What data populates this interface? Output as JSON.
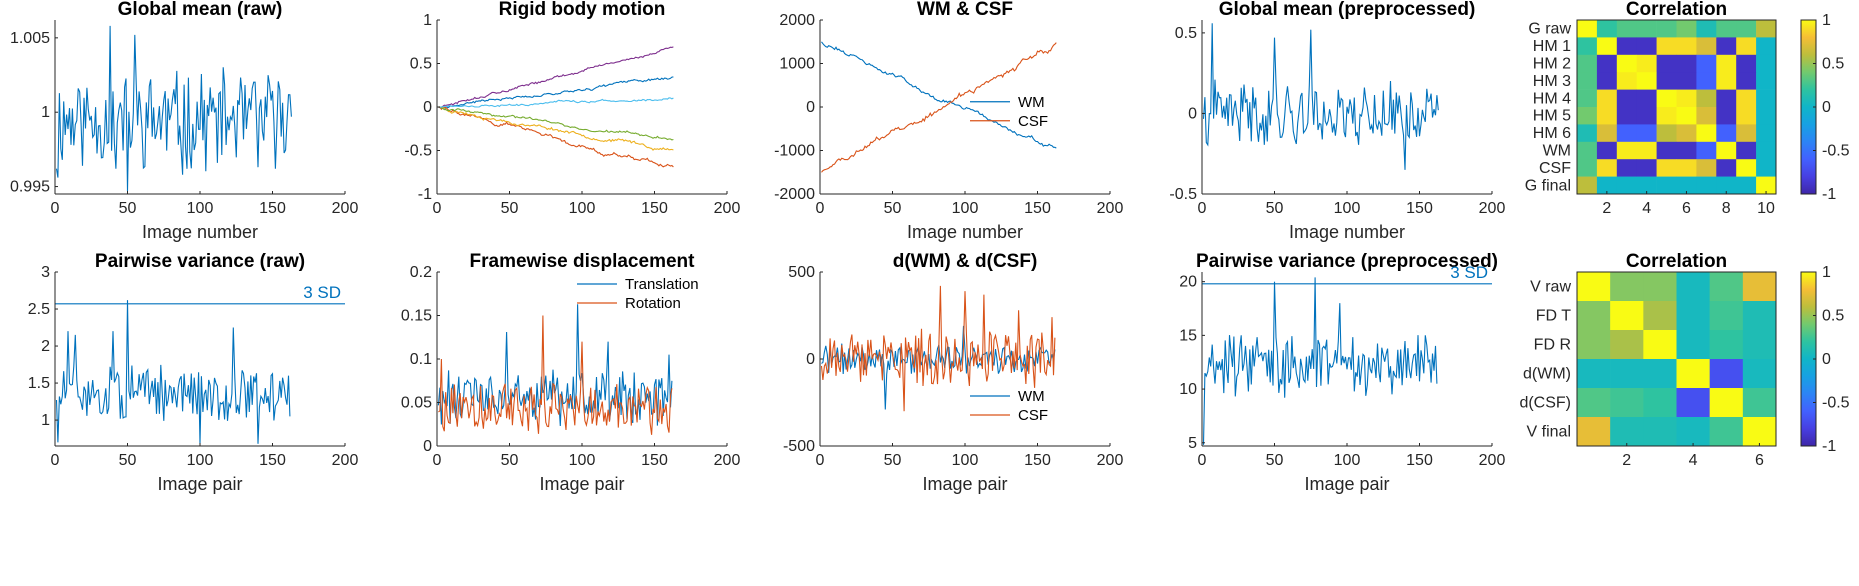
{
  "chart_data": [
    {
      "id": "gm_raw",
      "type": "line",
      "title": "Global mean (raw)",
      "xlabel": "Image number",
      "ylabel": "",
      "xlim": [
        0,
        200
      ],
      "ylim": [
        0.9945,
        1.0062
      ],
      "xticks": [
        0,
        50,
        100,
        150,
        200
      ],
      "yticks": [
        0.995,
        1,
        1.005
      ],
      "ytick_labels": [
        "0.995",
        "1",
        "1.005"
      ],
      "grid": false,
      "series": [
        {
          "name": "",
          "color": "#0072BD",
          "n": 163,
          "x_start": 1,
          "x_step": 1,
          "base": 0.9995,
          "amp": 0.0028,
          "trend": 0,
          "seed": 11,
          "spikes": [
            [
              1,
              0.9962
            ],
            [
              2,
              0.9956
            ],
            [
              38,
              1.0058
            ],
            [
              42,
              0.9962
            ],
            [
              50,
              0.9947
            ],
            [
              55,
              1.0052
            ],
            [
              88,
              0.9958
            ],
            [
              140,
              0.9963
            ],
            [
              163,
              0.9997
            ]
          ]
        }
      ]
    },
    {
      "id": "rigid",
      "type": "line",
      "title": "Rigid body motion",
      "xlabel": "",
      "ylabel": "",
      "xlim": [
        0,
        200
      ],
      "ylim": [
        -1,
        1
      ],
      "xticks": [
        0,
        50,
        100,
        150,
        200
      ],
      "yticks": [
        -1,
        -0.5,
        0,
        0.5,
        1
      ],
      "ytick_labels": [
        "-1",
        "-0.5",
        "0",
        "0.5",
        "1"
      ],
      "grid": false,
      "series": [
        {
          "name": "",
          "color": "#0072BD",
          "n": 163,
          "x_start": 1,
          "x_step": 1,
          "mode": "walk",
          "end": 0.35,
          "noise": 0.012,
          "seed": 21
        },
        {
          "name": "",
          "color": "#D95319",
          "n": 163,
          "x_start": 1,
          "x_step": 1,
          "mode": "walk",
          "end": -0.7,
          "noise": 0.018,
          "seed": 22
        },
        {
          "name": "",
          "color": "#EDB120",
          "n": 163,
          "x_start": 1,
          "x_step": 1,
          "mode": "walk",
          "end": -0.5,
          "noise": 0.015,
          "seed": 23
        },
        {
          "name": "",
          "color": "#7E2F8E",
          "n": 163,
          "x_start": 1,
          "x_step": 1,
          "mode": "walk",
          "end": 0.68,
          "noise": 0.012,
          "seed": 24
        },
        {
          "name": "",
          "color": "#77AC30",
          "n": 163,
          "x_start": 1,
          "x_step": 1,
          "mode": "walk",
          "end": -0.37,
          "noise": 0.012,
          "seed": 25
        },
        {
          "name": "",
          "color": "#4DBEEE",
          "n": 163,
          "x_start": 1,
          "x_step": 1,
          "mode": "walk",
          "end": 0.1,
          "noise": 0.01,
          "seed": 26
        }
      ]
    },
    {
      "id": "wmcsf",
      "type": "line",
      "title": "WM & CSF",
      "xlabel": "Image number",
      "ylabel": "",
      "xlim": [
        0,
        200
      ],
      "ylim": [
        -2000,
        2000
      ],
      "xticks": [
        0,
        50,
        100,
        150,
        200
      ],
      "yticks": [
        -2000,
        -1000,
        0,
        1000,
        2000
      ],
      "ytick_labels": [
        "-2000",
        "-1000",
        "0",
        "1000",
        "2000"
      ],
      "grid": false,
      "legend": "east",
      "series": [
        {
          "name": "WM",
          "color": "#0072BD",
          "n": 163,
          "x_start": 1,
          "x_step": 1,
          "mode": "walk",
          "start": 1500,
          "end": -1020,
          "noise": 40,
          "seed": 31
        },
        {
          "name": "CSF",
          "color": "#D95319",
          "n": 163,
          "x_start": 1,
          "x_step": 1,
          "mode": "walk",
          "start": -1500,
          "end": 1380,
          "noise": 55,
          "seed": 32
        }
      ]
    },
    {
      "id": "gm_pre",
      "type": "line",
      "title": "Global mean (preprocessed)",
      "xlabel": "Image number",
      "ylabel": "",
      "xlim": [
        0,
        200
      ],
      "ylim": [
        -0.5,
        0.58
      ],
      "xticks": [
        0,
        50,
        100,
        150,
        200
      ],
      "yticks": [
        -0.5,
        0,
        0.5
      ],
      "ytick_labels": [
        "-0.5",
        "0",
        "0.5"
      ],
      "grid": false,
      "series": [
        {
          "name": "",
          "color": "#0072BD",
          "n": 163,
          "x_start": 1,
          "x_step": 1,
          "base": 0,
          "amp": 0.17,
          "trend": 0,
          "seed": 41,
          "spikes": [
            [
              7,
              0.56
            ],
            [
              50,
              0.47
            ],
            [
              75,
              0.52
            ],
            [
              3,
              -0.18
            ],
            [
              140,
              -0.35
            ],
            [
              163,
              0.02
            ]
          ]
        }
      ]
    },
    {
      "id": "corr1",
      "type": "heatmap",
      "title": "Correlation",
      "xlabel": "",
      "ylabel": "",
      "row_labels": [
        "G raw",
        "HM 1",
        "HM 2",
        "HM 3",
        "HM 4",
        "HM 5",
        "HM 6",
        "WM",
        "CSF",
        "G final"
      ],
      "xticks": [
        2,
        4,
        6,
        8,
        10
      ],
      "clim": [
        -1,
        1
      ],
      "colorbar_ticks": [
        -1,
        -0.5,
        0,
        0.5,
        1
      ],
      "colorbar_labels": [
        "-1",
        "-0.5",
        "0",
        "0.5",
        "1"
      ],
      "matrix": [
        [
          1,
          0.2,
          0.3,
          0.3,
          0.3,
          0.4,
          0.1,
          0.3,
          0.3,
          0.6
        ],
        [
          0.2,
          1,
          -0.9,
          -0.9,
          0.9,
          0.9,
          0.7,
          -0.9,
          0.9,
          0
        ],
        [
          0.3,
          -0.9,
          1,
          0.95,
          -0.9,
          -0.9,
          -0.6,
          0.95,
          -0.9,
          0
        ],
        [
          0.3,
          -0.9,
          0.95,
          1,
          -0.9,
          -0.9,
          -0.6,
          0.95,
          -0.9,
          0
        ],
        [
          0.3,
          0.9,
          -0.9,
          -0.9,
          1,
          0.95,
          0.6,
          -0.9,
          0.9,
          0
        ],
        [
          0.4,
          0.9,
          -0.9,
          -0.9,
          0.95,
          1,
          0.7,
          -0.9,
          0.9,
          0
        ],
        [
          0.1,
          0.7,
          -0.6,
          -0.6,
          0.6,
          0.7,
          1,
          -0.6,
          0.7,
          0
        ],
        [
          0.3,
          -0.9,
          0.95,
          0.95,
          -0.9,
          -0.9,
          -0.6,
          1,
          -0.9,
          0
        ],
        [
          0.3,
          0.9,
          -0.9,
          -0.9,
          0.9,
          0.9,
          0.7,
          -0.9,
          1,
          0
        ],
        [
          0.6,
          0,
          0,
          0,
          0,
          0,
          0,
          0,
          0,
          1
        ]
      ]
    },
    {
      "id": "pv_raw",
      "type": "line",
      "title": "Pairwise variance (raw)",
      "xlabel": "Image pair",
      "ylabel": "",
      "xlim": [
        0,
        200
      ],
      "ylim": [
        0.65,
        3
      ],
      "xticks": [
        0,
        50,
        100,
        150,
        200
      ],
      "yticks": [
        1,
        1.5,
        2,
        2.5,
        3
      ],
      "ytick_labels": [
        "1",
        "1.5",
        "2",
        "2.5",
        "3"
      ],
      "grid": false,
      "threshold": {
        "value": 2.57,
        "label": "3 SD",
        "color": "#0072BD"
      },
      "series": [
        {
          "name": "",
          "color": "#0072BD",
          "n": 162,
          "x_start": 1,
          "x_step": 1,
          "base": 1.35,
          "amp": 0.32,
          "trend": 0,
          "seed": 51,
          "spikes": [
            [
              50,
              2.62
            ],
            [
              9,
              2.2
            ],
            [
              14,
              2.15
            ],
            [
              40,
              2.2
            ],
            [
              123,
              2.25
            ],
            [
              100,
              0.68
            ],
            [
              140,
              0.68
            ],
            [
              2,
              0.7
            ],
            [
              162,
              1.05
            ]
          ]
        }
      ]
    },
    {
      "id": "fd",
      "type": "line",
      "title": "Framewise displacement",
      "xlabel": "Image pair",
      "ylabel": "",
      "xlim": [
        0,
        200
      ],
      "ylim": [
        0,
        0.2
      ],
      "xticks": [
        0,
        50,
        100,
        150,
        200
      ],
      "yticks": [
        0,
        0.05,
        0.1,
        0.15,
        0.2
      ],
      "ytick_labels": [
        "0",
        "0.05",
        "0.1",
        "0.15",
        "0.2"
      ],
      "grid": false,
      "legend": "northeast",
      "series": [
        {
          "name": "Translation",
          "color": "#0072BD",
          "n": 162,
          "x_start": 1,
          "x_step": 1,
          "base": 0.055,
          "amp": 0.028,
          "trend": 0,
          "seed": 61,
          "min": 0.005,
          "spikes": [
            [
              97,
              0.163
            ],
            [
              48,
              0.131
            ],
            [
              118,
              0.12
            ],
            [
              160,
              0.105
            ]
          ]
        },
        {
          "name": "Rotation",
          "color": "#D95319",
          "n": 162,
          "x_start": 1,
          "x_step": 1,
          "base": 0.045,
          "amp": 0.025,
          "trend": 0,
          "seed": 62,
          "min": 0.003,
          "spikes": [
            [
              73,
              0.15
            ],
            [
              3,
              0.1
            ],
            [
              100,
              0.12
            ]
          ]
        }
      ]
    },
    {
      "id": "dwm",
      "type": "line",
      "title": "d(WM) & d(CSF)",
      "xlabel": "Image pair",
      "ylabel": "",
      "xlim": [
        0,
        200
      ],
      "ylim": [
        -500,
        500
      ],
      "xticks": [
        0,
        50,
        100,
        150,
        200
      ],
      "yticks": [
        -500,
        0,
        500
      ],
      "ytick_labels": [
        "-500",
        "0",
        "500"
      ],
      "grid": false,
      "legend": "southeast",
      "series": [
        {
          "name": "WM",
          "color": "#0072BD",
          "n": 162,
          "x_start": 1,
          "x_step": 1,
          "base": 0,
          "amp": 75,
          "trend": 0,
          "seed": 71,
          "spikes": [
            [
              45,
              -290
            ],
            [
              99,
              190
            ]
          ]
        },
        {
          "name": "CSF",
          "color": "#D95319",
          "n": 162,
          "x_start": 1,
          "x_step": 1,
          "base": 0,
          "amp": 140,
          "trend": 0,
          "seed": 72,
          "spikes": [
            [
              83,
              420
            ],
            [
              100,
              390
            ],
            [
              113,
              370
            ],
            [
              137,
              280
            ],
            [
              58,
              -300
            ],
            [
              160,
              240
            ]
          ]
        }
      ]
    },
    {
      "id": "pv_pre",
      "type": "line",
      "title": "Pairwise variance (preprocessed)",
      "xlabel": "Image pair",
      "ylabel": "",
      "xlim": [
        0,
        200
      ],
      "ylim": [
        4.7,
        20.9
      ],
      "xticks": [
        0,
        50,
        100,
        150,
        200
      ],
      "yticks": [
        5,
        10,
        15,
        20
      ],
      "ytick_labels": [
        "5",
        "10",
        "15",
        "20"
      ],
      "grid": false,
      "threshold": {
        "value": 19.8,
        "label": "3 SD",
        "color": "#0072BD"
      },
      "series": [
        {
          "name": "",
          "color": "#0072BD",
          "n": 162,
          "x_start": 1,
          "x_step": 1,
          "base": 12.3,
          "amp": 2.4,
          "trend": 0,
          "seed": 81,
          "spikes": [
            [
              1,
              4.8
            ],
            [
              50,
              20.0
            ],
            [
              78,
              20.4
            ],
            [
              95,
              18
            ],
            [
              57,
              9.2
            ],
            [
              162,
              10.5
            ]
          ]
        }
      ]
    },
    {
      "id": "corr2",
      "type": "heatmap",
      "title": "Correlation",
      "xlabel": "",
      "ylabel": "",
      "row_labels": [
        "V raw",
        "FD T",
        "FD R",
        "d(WM)",
        "d(CSF)",
        "V final"
      ],
      "xticks": [
        2,
        4,
        6
      ],
      "clim": [
        -1,
        1
      ],
      "colorbar_ticks": [
        -1,
        -0.5,
        0,
        0.5,
        1
      ],
      "colorbar_labels": [
        "-1",
        "-0.5",
        "0",
        "0.5",
        "1"
      ],
      "matrix": [
        [
          1,
          0.45,
          0.45,
          0.05,
          0.3,
          0.75
        ],
        [
          0.45,
          1,
          0.55,
          0.05,
          0.25,
          0.1
        ],
        [
          0.45,
          0.55,
          1,
          0.05,
          0.2,
          0.1
        ],
        [
          0.05,
          0.05,
          0.05,
          1,
          -0.7,
          0.05
        ],
        [
          0.3,
          0.25,
          0.2,
          -0.7,
          1,
          0.25
        ],
        [
          0.75,
          0.1,
          0.1,
          0.05,
          0.25,
          1
        ]
      ]
    }
  ]
}
